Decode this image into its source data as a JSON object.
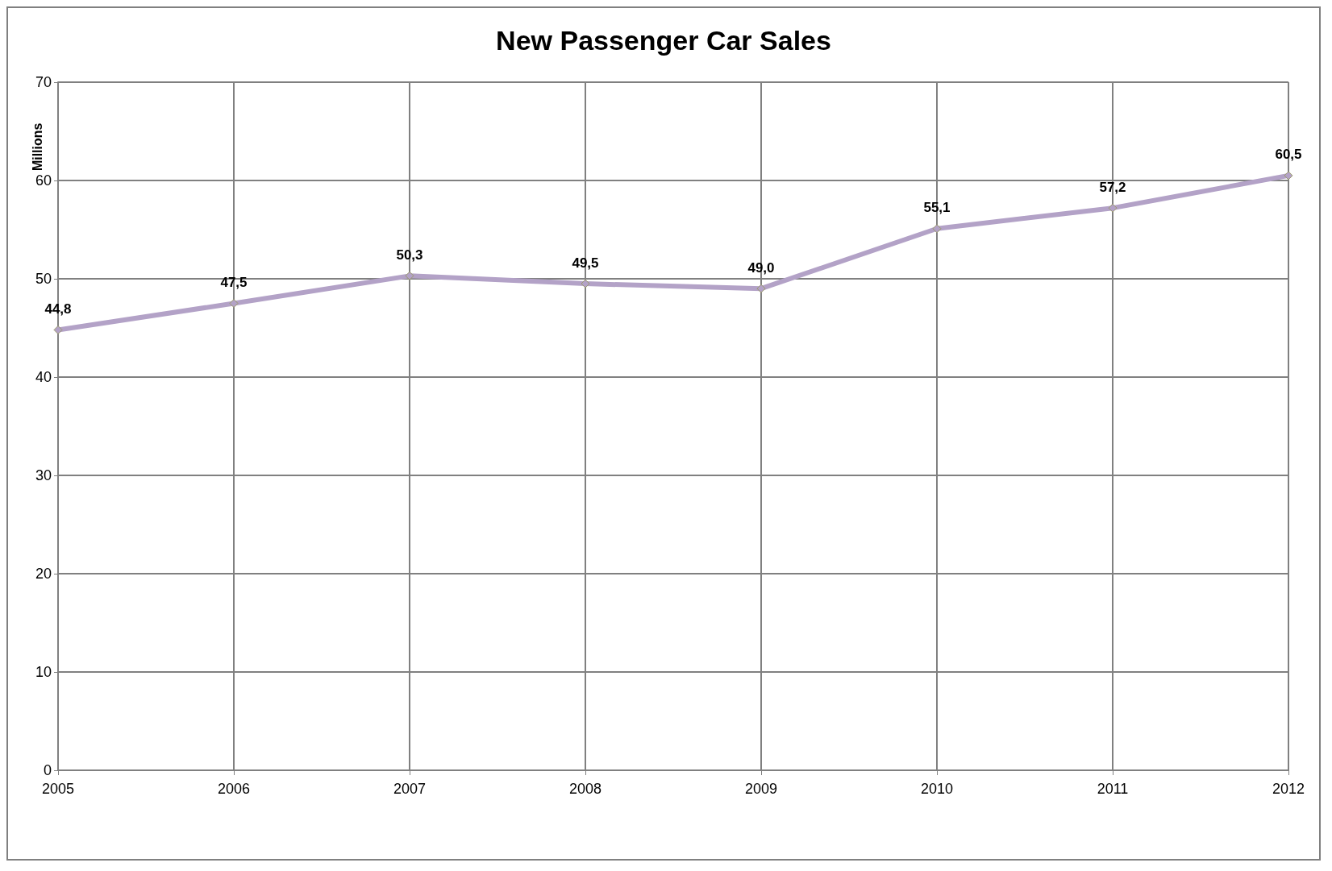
{
  "chart_data": {
    "type": "line",
    "title": "New Passenger Car Sales",
    "ylabel": "Millions",
    "categories": [
      "2005",
      "2006",
      "2007",
      "2008",
      "2009",
      "2010",
      "2011",
      "2012"
    ],
    "series": [
      {
        "color": "#b3a2c7",
        "values": [
          44.8,
          47.5,
          50.3,
          49.5,
          49.0,
          55.1,
          57.2,
          60.5
        ],
        "value_labels": [
          "44,8",
          "47,5",
          "50,3",
          "49,5",
          "49,0",
          "55,1",
          "57,2",
          "60,5"
        ]
      }
    ],
    "ylim": [
      0,
      70
    ],
    "yticks": [
      0,
      10,
      20,
      30,
      40,
      50,
      60,
      70
    ],
    "grid": true,
    "marker": "diamond",
    "line_style": "solid"
  }
}
